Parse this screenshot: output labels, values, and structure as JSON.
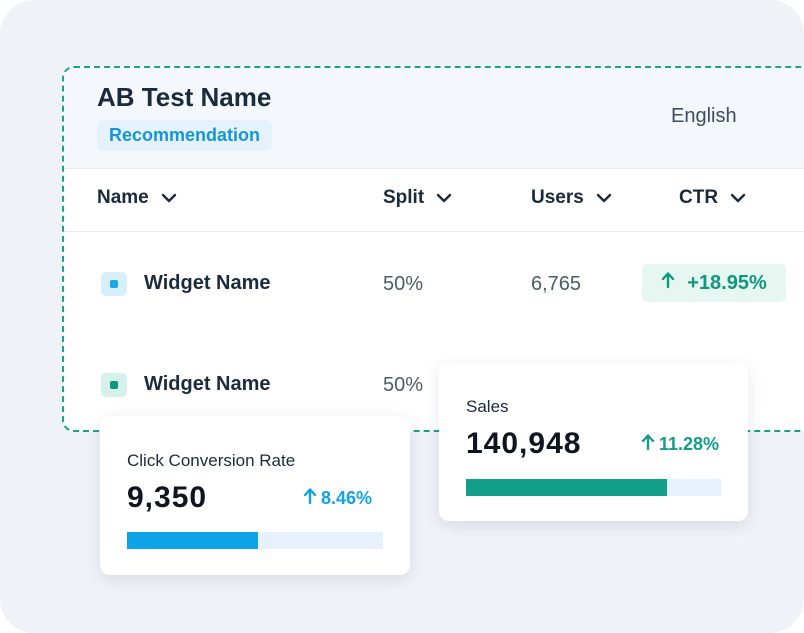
{
  "test": {
    "title": "AB Test Name",
    "tag": "Recommendation",
    "language": "English"
  },
  "columns": [
    {
      "label": "Name"
    },
    {
      "label": "Split"
    },
    {
      "label": "Users"
    },
    {
      "label": "CTR"
    }
  ],
  "rows": [
    {
      "name": "Widget Name",
      "split": "50%",
      "users": "6,765",
      "ctr": "+18.95%",
      "ctr_direction": "up",
      "icon_color": "#18a8e6",
      "icon_bg": "#d7eefb"
    },
    {
      "name": "Widget Name",
      "split": "50%",
      "icon_color": "#12977f",
      "icon_bg": "#d6f1ea"
    }
  ],
  "cards": {
    "click_conversion": {
      "label": "Click Conversion Rate",
      "value": "9,350",
      "change": "8.46%",
      "progress": 0.51,
      "color": "#0fa3e8",
      "track_color": "#e7f1fb"
    },
    "sales": {
      "label": "Sales",
      "value": "140,948",
      "change": "11.28%",
      "progress": 0.79,
      "color": "#129e8b",
      "track_color": "#e7f1fb"
    }
  },
  "colors": {
    "accent_teal": "#18a38c",
    "accent_blue": "#1596d8",
    "text_dark": "#1b2a3d"
  },
  "icons": {
    "column_sort": "chevron-down-icon",
    "trend_up": "arrow-up-icon"
  }
}
